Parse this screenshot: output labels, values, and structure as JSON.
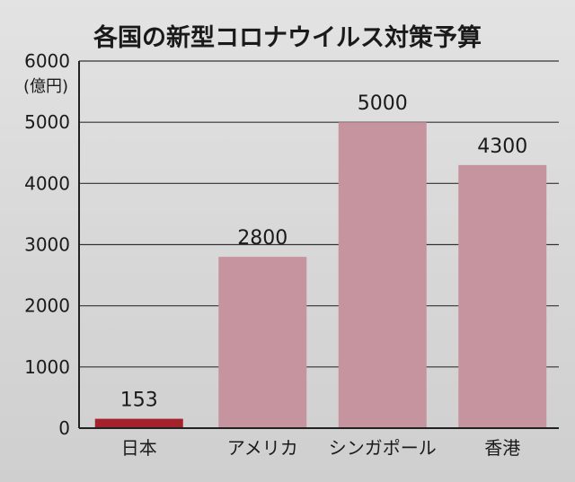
{
  "chart_data": {
    "type": "bar",
    "title": "各国の新型コロナウイルス対策予算",
    "ylabel": "(億円)",
    "xlabel": "",
    "categories": [
      "日本",
      "アメリカ",
      "シンガポール",
      "香港"
    ],
    "values": [
      153,
      2800,
      5000,
      4300
    ],
    "data_labels": [
      "153",
      "2800",
      "5000",
      "4300"
    ],
    "yticks": [
      0,
      1000,
      2000,
      3000,
      4000,
      5000,
      6000
    ],
    "ylim": [
      0,
      6000
    ],
    "grid": true,
    "legend": "none",
    "colors": {
      "highlight": "#a3222c",
      "bar": "#c6949e",
      "axis": "#222222",
      "grid": "#333333"
    },
    "highlight_index": 0
  }
}
